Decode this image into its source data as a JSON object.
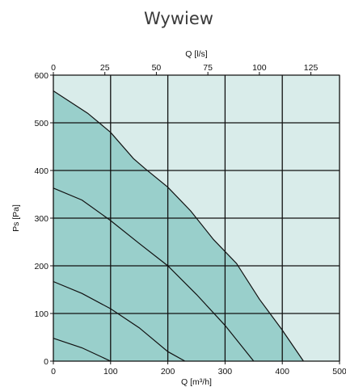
{
  "chart_data": {
    "type": "area",
    "title": "Wywiew",
    "xlabel": "Q [m³/h]",
    "x2label": "Q [l/s]",
    "ylabel": "Ps [Pa]",
    "xlim": [
      0,
      500
    ],
    "x2lim": [
      0,
      138.9
    ],
    "ylim": [
      0,
      600
    ],
    "xticks": [
      "0",
      "100",
      "200",
      "300",
      "400",
      "500"
    ],
    "x2ticks": [
      "0",
      "25",
      "50",
      "75",
      "100",
      "125"
    ],
    "yticks": [
      "0",
      "100",
      "200",
      "300",
      "400",
      "500",
      "600"
    ],
    "grid": true,
    "colors": {
      "background": "#d9ecea",
      "fill": "#99cfcb",
      "curve": "#111111",
      "grid": "#111111"
    },
    "series": [
      {
        "x": [
          0,
          60,
          100,
          140,
          160,
          200,
          240,
          280,
          320,
          360,
          400,
          437
        ],
        "y": [
          567,
          520,
          480,
          425,
          404,
          365,
          315,
          255,
          205,
          130,
          65,
          0
        ]
      },
      {
        "x": [
          0,
          50,
          100,
          150,
          200,
          250,
          300,
          350
        ],
        "y": [
          363,
          338,
          295,
          247,
          200,
          140,
          75,
          0
        ]
      },
      {
        "x": [
          0,
          50,
          100,
          150,
          200,
          230
        ],
        "y": [
          167,
          142,
          110,
          70,
          20,
          0
        ]
      },
      {
        "x": [
          0,
          50,
          100,
          100
        ],
        "y": [
          48,
          28,
          0,
          0
        ]
      }
    ]
  }
}
